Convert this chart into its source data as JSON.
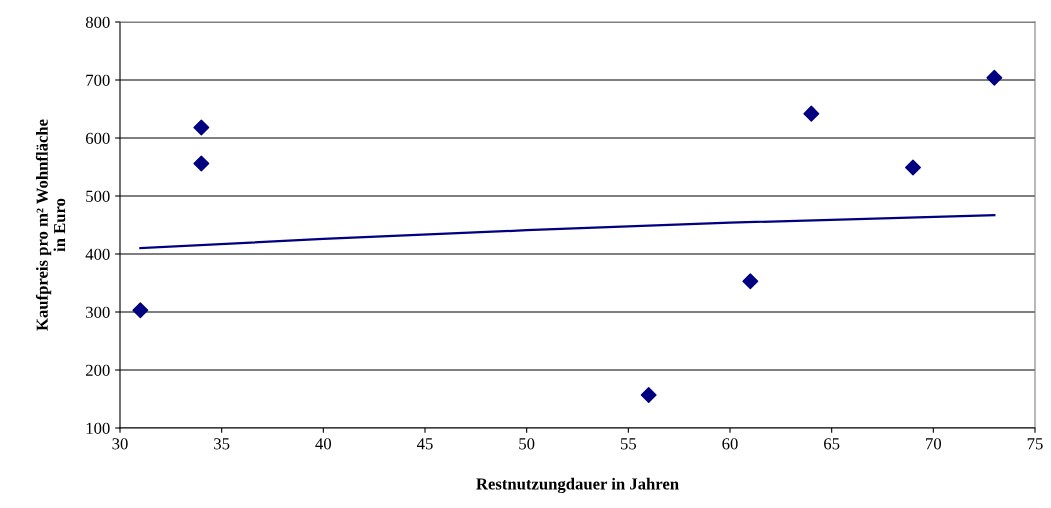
{
  "chart_data": {
    "type": "scatter",
    "xlabel": "Restnutzungdauer in Jahren",
    "ylabel": "Kaufpreis pro m² Wohnfläche\nin Euro",
    "series": [
      {
        "color": "#000080",
        "x": [
          31,
          34,
          34,
          56,
          61,
          64,
          69,
          73
        ],
        "values": [
          303,
          618,
          556,
          157,
          353,
          642,
          549,
          704
        ],
        "marker": "diamond"
      },
      {
        "type": "line",
        "color": "#000080",
        "x": [
          31,
          40,
          50,
          60,
          73
        ],
        "values": [
          410,
          426,
          441,
          454,
          467
        ],
        "marker": "none"
      }
    ],
    "xlim": [
      30,
      75
    ],
    "xticks": [
      30,
      35,
      40,
      45,
      50,
      55,
      60,
      65,
      70,
      75
    ],
    "ylim": [
      100,
      800
    ],
    "yticks": [
      100,
      200,
      300,
      400,
      500,
      600,
      700,
      800
    ],
    "grid": "y",
    "legend": false
  }
}
